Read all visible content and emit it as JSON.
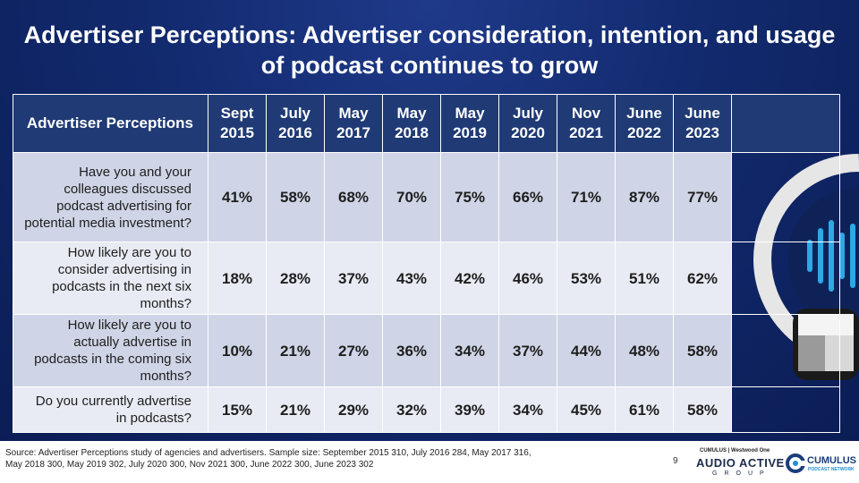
{
  "title": "Advertiser Perceptions: Advertiser consideration, intention, and usage of podcast continues to grow",
  "table": {
    "corner_label": "Advertiser Perceptions",
    "columns": [
      {
        "label": "Sept 2015"
      },
      {
        "label": "July 2016"
      },
      {
        "label": "May 2017"
      },
      {
        "label": "May 2018"
      },
      {
        "label": "May 2019"
      },
      {
        "label": "July 2020"
      },
      {
        "label": "Nov 2021"
      },
      {
        "label": "June 2022"
      },
      {
        "label": "June 2023"
      }
    ],
    "rows": [
      {
        "question": "Have you and your colleagues discussed podcast advertising for potential media investment?",
        "values": [
          "41%",
          "58%",
          "68%",
          "70%",
          "75%",
          "66%",
          "71%",
          "87%",
          "77%"
        ]
      },
      {
        "question": "How likely are you to consider advertising in podcasts in the next six months?",
        "values": [
          "18%",
          "28%",
          "37%",
          "43%",
          "42%",
          "46%",
          "53%",
          "51%",
          "62%"
        ]
      },
      {
        "question": "How likely are you to actually advertise in podcasts in the coming six months?",
        "values": [
          "10%",
          "21%",
          "27%",
          "36%",
          "34%",
          "37%",
          "44%",
          "48%",
          "58%"
        ]
      },
      {
        "question": "Do you currently advertise in podcasts?",
        "values": [
          "15%",
          "21%",
          "29%",
          "32%",
          "39%",
          "34%",
          "45%",
          "61%",
          "58%"
        ]
      }
    ]
  },
  "footer": {
    "source_line1": "Source: Advertiser Perceptions study of agencies and advertisers. Sample size: September 2015 310, July 2016 284,  May 2017 316,",
    "source_line2": "May 2018 300, May 2019 302, July 2020 300, Nov 2021 300, June 2022 300, June 2023 302",
    "page_number": "9"
  },
  "logos": {
    "top_line": "CUMULUS | Westwood One",
    "audio_active": "AUDIO ACTIVE",
    "group": "GROUP",
    "cumulus": "CUMULUS",
    "podcast_network": "PODCAST NETWORK"
  },
  "colors": {
    "background_dark": "#0b1d55",
    "header_fill": "#1f3a74",
    "row_dark": "#cfd5e6",
    "row_light": "#e8ebf3",
    "accent_blue": "#1e8fd0"
  }
}
